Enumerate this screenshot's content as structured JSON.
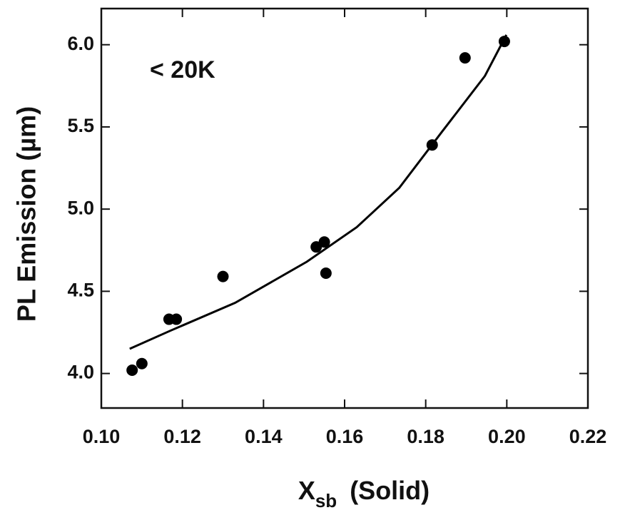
{
  "chart_data": {
    "type": "scatter",
    "annotation": "< 20K",
    "xlabel": {
      "main": "X",
      "sub": "sb",
      "rest": "(Solid)"
    },
    "ylabel": "PL Emission (µm)",
    "xlim": [
      0.1,
      0.22
    ],
    "ylim": [
      3.79,
      6.22
    ],
    "xticks": [
      {
        "value": 0.1,
        "label": "0.10"
      },
      {
        "value": 0.12,
        "label": "0.12"
      },
      {
        "value": 0.14,
        "label": "0.14"
      },
      {
        "value": 0.16,
        "label": "0.16"
      },
      {
        "value": 0.18,
        "label": "0.18"
      },
      {
        "value": 0.2,
        "label": "0.20"
      },
      {
        "value": 0.22,
        "label": "0.22"
      }
    ],
    "yticks": [
      {
        "value": 4.0,
        "label": "4.0"
      },
      4.5,
      {
        "value": 5.0,
        "label": "5.0"
      },
      5.5,
      {
        "value": 6.0,
        "label": "6.0"
      }
    ],
    "series": [
      {
        "color": "#000000",
        "marker": "circle",
        "x": [
          0.1076,
          0.11,
          0.1167,
          0.1185,
          0.13,
          0.153,
          0.155,
          0.1554,
          0.1816,
          0.1897,
          0.1994
        ],
        "values": [
          4.02,
          4.06,
          4.33,
          4.33,
          4.59,
          4.77,
          4.8,
          4.61,
          5.39,
          5.92,
          6.02
        ]
      },
      {
        "color": "#000000",
        "marker": "line",
        "x": [
          0.107,
          0.117,
          0.133,
          0.1507,
          0.163,
          0.1735,
          0.184,
          0.1946,
          0.1999
        ],
        "values": [
          4.15,
          4.26,
          4.43,
          4.68,
          4.89,
          5.13,
          5.47,
          5.81,
          6.06
        ]
      }
    ]
  }
}
